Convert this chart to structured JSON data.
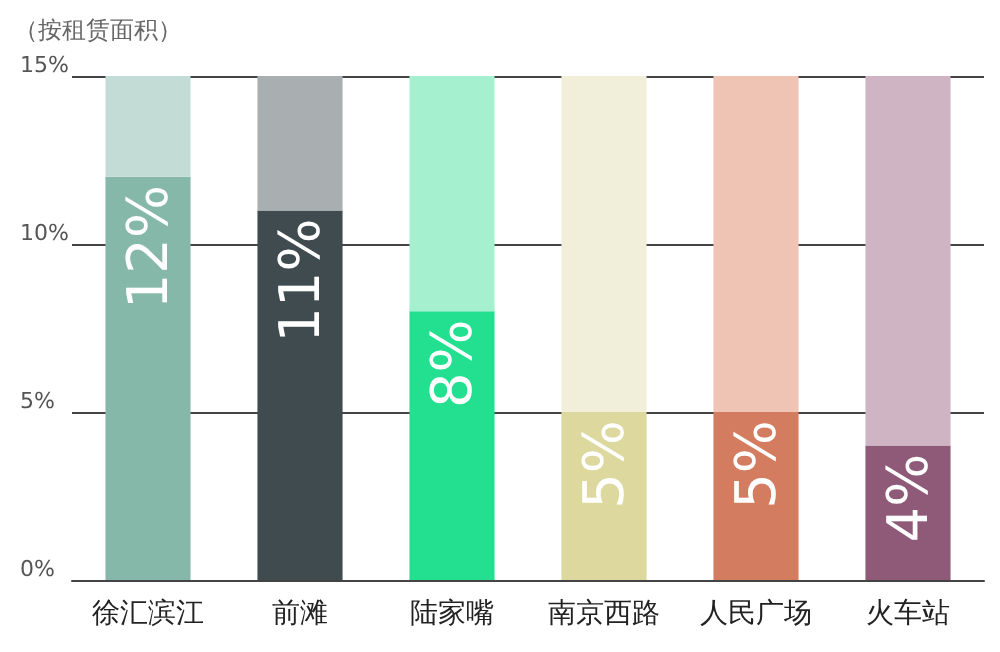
{
  "chart_data": {
    "type": "bar",
    "ylabel": "（按租赁面积）",
    "categories": [
      "徐汇滨江",
      "前滩",
      "陆家嘴",
      "南京西路",
      "人民广场",
      "火车站"
    ],
    "stacked": true,
    "series": [
      {
        "colors": [
          "#86b8aa",
          "#3f4b4f",
          "#22e08f",
          "#ddd89e",
          "#d47c5f",
          "#8e5a78"
        ],
        "values": [
          12,
          11,
          8,
          5,
          5,
          4
        ],
        "value_labels": [
          "12%",
          "11%",
          "8%",
          "5%",
          "5%",
          "4%"
        ]
      },
      {
        "colors": [
          "#c4dcd6",
          "#a9aeb1",
          "#a4f0cf",
          "#f1eed9",
          "#efc4b5",
          "#cfb5c4"
        ],
        "values": [
          3,
          4,
          7,
          10,
          10,
          11
        ]
      }
    ],
    "ylim": [
      0,
      15
    ],
    "yticks": [
      {
        "value": 0,
        "label": "0%"
      },
      {
        "value": 5,
        "label": "5%"
      },
      {
        "value": 10,
        "label": "10%"
      },
      {
        "value": 15,
        "label": "15%"
      }
    ],
    "grid": "y"
  }
}
